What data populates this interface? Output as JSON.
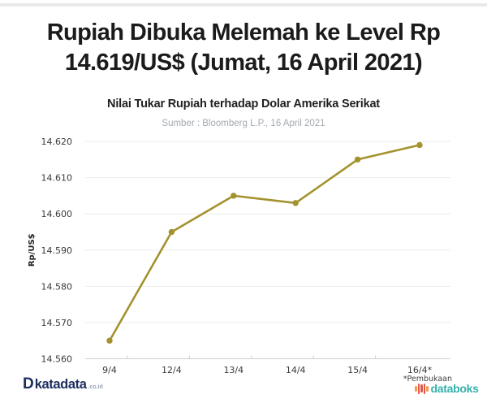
{
  "header": {
    "title_line1": "Rupiah Dibuka Melemah ke Level Rp",
    "title_line2": "14.619/US$ (Jumat, 16 April 2021)",
    "subtitle": "Nilai Tukar Rupiah terhadap Dolar Amerika Serikat",
    "source": "Sumber : Bloomberg L.P., 16 April 2021"
  },
  "chart_data": {
    "type": "line",
    "title": "Rupiah Dibuka Melemah ke Level Rp 14.619/US$ (Jumat, 16 April 2021)",
    "subtitle": "Nilai Tukar Rupiah terhadap Dolar Amerika Serikat",
    "source": "Sumber : Bloomberg L.P., 16 April 2021",
    "categories": [
      "9/4",
      "12/4",
      "13/4",
      "14/4",
      "15/4",
      "16/4*"
    ],
    "values": [
      14565,
      14595,
      14605,
      14603,
      14615,
      14619
    ],
    "ylabel": "Rp/US$",
    "xlabel": "",
    "ylim": [
      14560,
      14620
    ],
    "ytick_step": 10,
    "ytick_labels": [
      "14.560",
      "14.570",
      "14.580",
      "14.590",
      "14.600",
      "14.610",
      "14.620"
    ],
    "grid": true,
    "legend": "none",
    "line_color": "#a4922e",
    "grid_color": "#ededed",
    "axis_color": "#cfcfcf",
    "tick_text_color": "#38393a",
    "footnote": "*Pembukaan"
  },
  "footer": {
    "katadata": {
      "d": "D",
      "name": "katadata",
      "tld": ".co.id",
      "color": "#1c2d5e"
    },
    "databoks": {
      "name": "databoks",
      "text_color": "#35b0ab",
      "bar_heights": [
        7,
        13,
        10,
        13,
        7
      ],
      "bar_colors": [
        "#f29b4d",
        "#e0584a",
        "#e0584a",
        "#e0584a",
        "#f29b4d"
      ]
    }
  }
}
